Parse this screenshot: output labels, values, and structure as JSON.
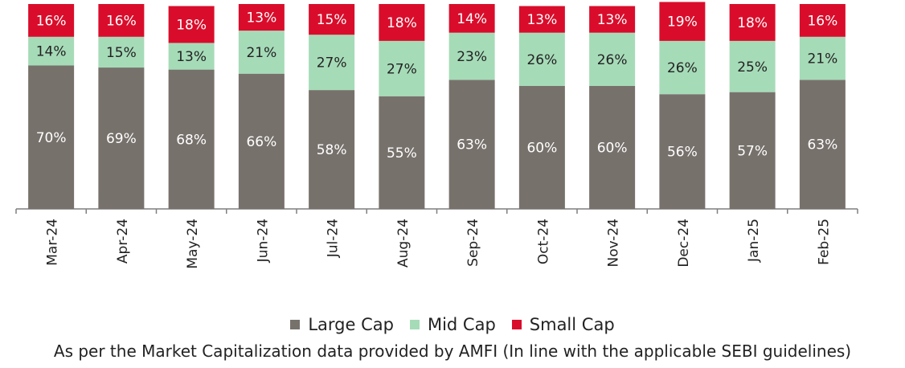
{
  "chart_data": {
    "type": "bar",
    "stacked": true,
    "categories": [
      "Mar-24",
      "Apr-24",
      "May-24",
      "Jun-24",
      "Jul-24",
      "Aug-24",
      "Sep-24",
      "Oct-24",
      "Nov-24",
      "Dec-24",
      "Jan-25",
      "Feb-25"
    ],
    "series": [
      {
        "name": "Large Cap",
        "color": "#77716c",
        "values": [
          70,
          69,
          68,
          66,
          58,
          55,
          63,
          60,
          60,
          56,
          57,
          63
        ]
      },
      {
        "name": "Mid Cap",
        "color": "#a6dbb8",
        "values": [
          14,
          15,
          13,
          21,
          27,
          27,
          23,
          26,
          26,
          26,
          25,
          21
        ]
      },
      {
        "name": "Small Cap",
        "color": "#d90d2b",
        "values": [
          16,
          16,
          18,
          13,
          15,
          18,
          14,
          13,
          13,
          19,
          18,
          16
        ]
      }
    ],
    "value_suffix": "%",
    "ylim": [
      0,
      100
    ],
    "legend_position": "bottom"
  },
  "footnote": "As per the Market Capitalization data provided by AMFI (In line with the applicable SEBI guidelines)"
}
